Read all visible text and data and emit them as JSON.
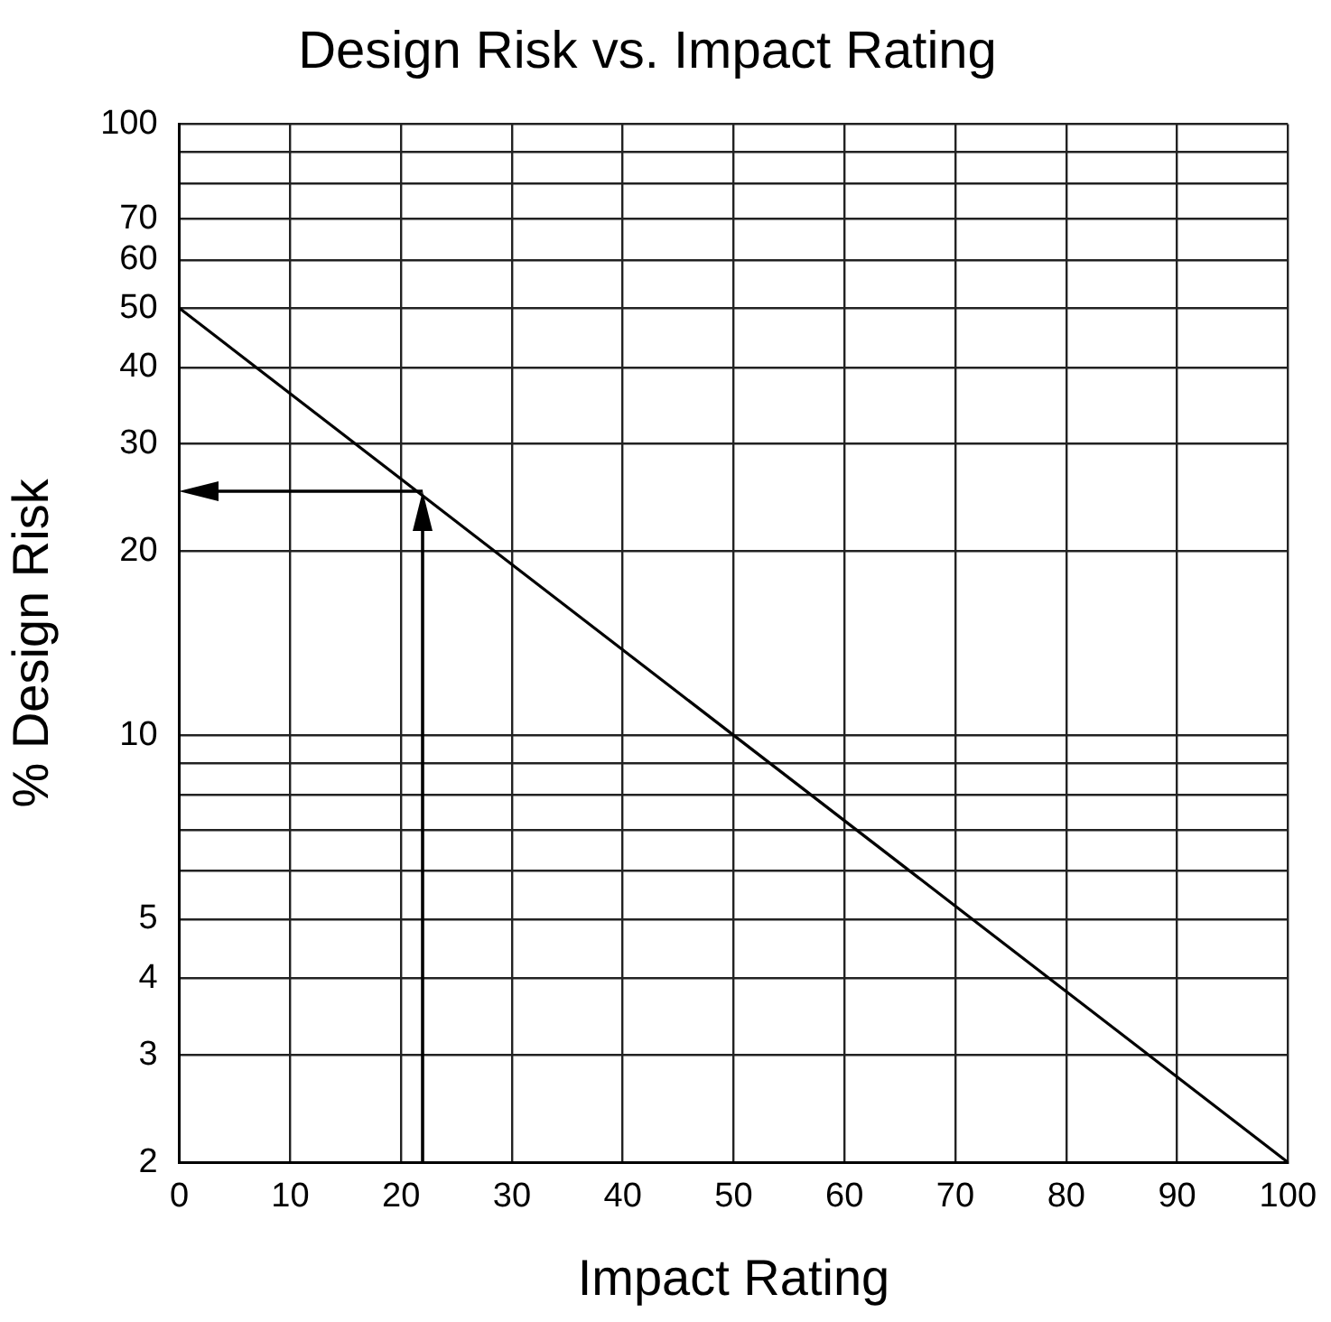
{
  "chart_data": {
    "type": "line",
    "title": "Design Risk vs. Impact Rating",
    "xlabel": "Impact Rating",
    "ylabel": "% Design Risk",
    "series": [
      {
        "x": [
          0,
          100
        ],
        "values": [
          50,
          2
        ],
        "color": "#000000"
      }
    ],
    "xlim": [
      0,
      100
    ],
    "xticks": [
      0,
      10,
      20,
      30,
      40,
      50,
      60,
      70,
      80,
      90,
      100
    ],
    "ylim": [
      2,
      100
    ],
    "log": "y",
    "yticks": [
      2,
      3,
      4,
      5,
      {
        "value": 6,
        "label": null
      },
      {
        "value": 7,
        "label": null
      },
      {
        "value": 8,
        "label": null
      },
      {
        "value": 9,
        "label": null
      },
      10,
      20,
      30,
      40,
      50,
      60,
      70,
      {
        "value": 80,
        "label": null
      },
      {
        "value": 90,
        "label": null
      },
      100
    ],
    "ref_lines": [
      {
        "axis": "x",
        "value": 22
      },
      {
        "axis": "y",
        "value": 25
      }
    ],
    "grid": true,
    "legend": false,
    "marker": "none",
    "line_style": "solid"
  }
}
